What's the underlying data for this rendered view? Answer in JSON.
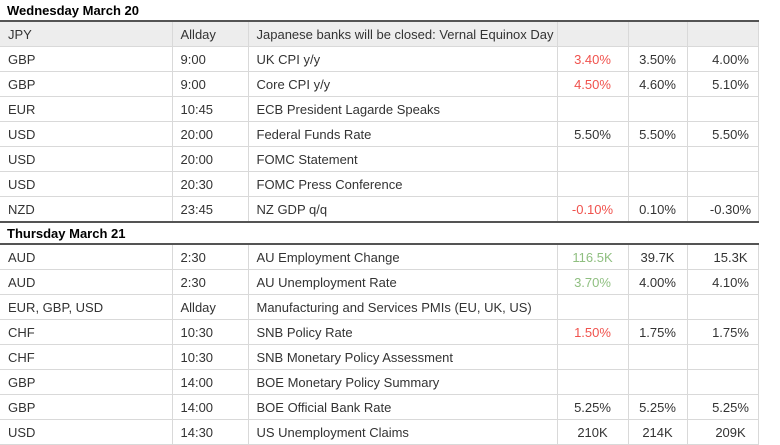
{
  "palette": {
    "positive": "#8fbf80",
    "negative": "#f0524d",
    "neutral": "#333333",
    "holiday_row_bg": "#ededed",
    "dark_border": "#545454",
    "light_border": "#d9d9d9"
  },
  "calendar": {
    "columns": [
      "currency",
      "time",
      "event",
      "actual",
      "forecast",
      "previous"
    ],
    "sections": [
      {
        "day_label": "Wednesday March 20",
        "rows": [
          {
            "currency": "JPY",
            "time": "Allday",
            "event": "Japanese banks will be closed: Vernal Equinox Day",
            "actual": "",
            "forecast": "",
            "previous": "",
            "actual_sentiment": "neutral",
            "holiday": true
          },
          {
            "currency": "GBP",
            "time": "9:00",
            "event": "UK CPI y/y",
            "actual": "3.40%",
            "forecast": "3.50%",
            "previous": "4.00%",
            "actual_sentiment": "negative"
          },
          {
            "currency": "GBP",
            "time": "9:00",
            "event": "Core CPI y/y",
            "actual": "4.50%",
            "forecast": "4.60%",
            "previous": "5.10%",
            "actual_sentiment": "negative"
          },
          {
            "currency": "EUR",
            "time": "10:45",
            "event": "ECB President Lagarde Speaks",
            "actual": "",
            "forecast": "",
            "previous": "",
            "actual_sentiment": "neutral"
          },
          {
            "currency": "USD",
            "time": "20:00",
            "event": "Federal Funds Rate",
            "actual": "5.50%",
            "forecast": "5.50%",
            "previous": "5.50%",
            "actual_sentiment": "neutral"
          },
          {
            "currency": "USD",
            "time": "20:00",
            "event": "FOMC Statement",
            "actual": "",
            "forecast": "",
            "previous": "",
            "actual_sentiment": "neutral"
          },
          {
            "currency": "USD",
            "time": "20:30",
            "event": "FOMC Press Conference",
            "actual": "",
            "forecast": "",
            "previous": "",
            "actual_sentiment": "neutral"
          },
          {
            "currency": "NZD",
            "time": "23:45",
            "event": "NZ GDP q/q",
            "actual": "-0.10%",
            "forecast": "0.10%",
            "previous": "-0.30%",
            "actual_sentiment": "negative"
          }
        ]
      },
      {
        "day_label": "Thursday March 21",
        "rows": [
          {
            "currency": "AUD",
            "time": "2:30",
            "event": "AU Employment Change",
            "actual": "116.5K",
            "forecast": "39.7K",
            "previous": "15.3K",
            "actual_sentiment": "positive"
          },
          {
            "currency": "AUD",
            "time": "2:30",
            "event": "AU Unemployment Rate",
            "actual": "3.70%",
            "forecast": "4.00%",
            "previous": "4.10%",
            "actual_sentiment": "positive"
          },
          {
            "currency": "EUR, GBP, USD",
            "time": "Allday",
            "event": "Manufacturing and Services PMIs (EU, UK, US)",
            "actual": "",
            "forecast": "",
            "previous": "",
            "actual_sentiment": "neutral"
          },
          {
            "currency": "CHF",
            "time": "10:30",
            "event": "SNB Policy Rate",
            "actual": "1.50%",
            "forecast": "1.75%",
            "previous": "1.75%",
            "actual_sentiment": "negative"
          },
          {
            "currency": "CHF",
            "time": "10:30",
            "event": "SNB Monetary Policy Assessment",
            "actual": "",
            "forecast": "",
            "previous": "",
            "actual_sentiment": "neutral"
          },
          {
            "currency": "GBP",
            "time": "14:00",
            "event": "BOE Monetary Policy Summary",
            "actual": "",
            "forecast": "",
            "previous": "",
            "actual_sentiment": "neutral"
          },
          {
            "currency": "GBP",
            "time": "14:00",
            "event": "BOE Official Bank Rate",
            "actual": "5.25%",
            "forecast": "5.25%",
            "previous": "5.25%",
            "actual_sentiment": "neutral"
          },
          {
            "currency": "USD",
            "time": "14:30",
            "event": "US Unemployment Claims",
            "actual": "210K",
            "forecast": "214K",
            "previous": "209K",
            "actual_sentiment": "neutral"
          }
        ]
      }
    ]
  }
}
